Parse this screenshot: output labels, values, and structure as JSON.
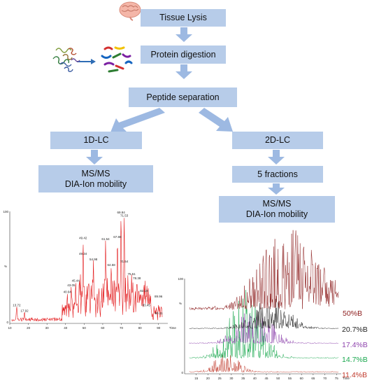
{
  "steps": {
    "tissue_lysis": "Tissue Lysis",
    "protein_digestion": "Protein digestion",
    "peptide_separation": "Peptide separation",
    "lc1d": "1D-LC",
    "lc2d": "2D-LC",
    "msms_left_line1": "MS/MS",
    "msms_left_line2": "DIA-Ion mobility",
    "fractions": "5 fractions",
    "msms_right_line1": "MS/MS",
    "msms_right_line2": "DIA-Ion mobility"
  },
  "colors": {
    "box": "#b7cce9",
    "arrow": "#9db9e2",
    "left_chromatogram": "#e31a1c",
    "trace_50": "#8b1a1a",
    "trace_20_7": "#222222",
    "trace_17_4": "#8e44ad",
    "trace_14_7": "#1aa84f",
    "trace_11_4": "#c0392b"
  },
  "chart_data": [
    {
      "type": "line",
      "title": "",
      "xlabel": "Time",
      "ylabel": "%",
      "xlim": [
        10,
        95
      ],
      "ylim": [
        0,
        100
      ],
      "x_ticks": [
        "10",
        "20",
        "30",
        "40",
        "50",
        "60",
        "70",
        "80",
        "90"
      ],
      "y_ticks": [
        "0",
        "100"
      ],
      "peaks": [
        {
          "x": 13.72,
          "y": 14,
          "label": "13.72"
        },
        {
          "x": 17.92,
          "y": 9,
          "label": "17.92"
        },
        {
          "x": 40.94,
          "y": 26,
          "label": "40.94"
        },
        {
          "x": 43.05,
          "y": 32,
          "label": "43.05"
        },
        {
          "x": 45.44,
          "y": 36,
          "label": "45.44"
        },
        {
          "x": 49.34,
          "y": 60,
          "label": "49.34"
        },
        {
          "x": 49.42,
          "y": 74,
          "label": "49.42"
        },
        {
          "x": 54.98,
          "y": 55,
          "label": "54.98"
        },
        {
          "x": 61.54,
          "y": 73,
          "label": "61.54"
        },
        {
          "x": 64.58,
          "y": 50,
          "label": "64.58"
        },
        {
          "x": 67.88,
          "y": 75,
          "label": "67.88"
        },
        {
          "x": 69.84,
          "y": 97,
          "label": "69.84"
        },
        {
          "x": 71.53,
          "y": 94,
          "label": "71.53"
        },
        {
          "x": 71.54,
          "y": 53,
          "label": "71.54"
        },
        {
          "x": 75.51,
          "y": 42,
          "label": "75.51"
        },
        {
          "x": 78.38,
          "y": 38,
          "label": "78.38"
        },
        {
          "x": 82.19,
          "y": 27,
          "label": "82.19"
        },
        {
          "x": 83.45,
          "y": 14,
          "label": "83.45"
        },
        {
          "x": 89.96,
          "y": 22,
          "label": "89.96"
        },
        {
          "x": 90.11,
          "y": 7,
          "label": "90.11"
        }
      ]
    },
    {
      "type": "line",
      "title": "",
      "xlabel": "Time",
      "ylabel": "%",
      "xlim": [
        10,
        77
      ],
      "x_ticks": [
        "15",
        "20",
        "25",
        "30",
        "35",
        "40",
        "45",
        "50",
        "55",
        "60",
        "65",
        "70",
        "75"
      ],
      "y_ticks": [
        "0",
        "100"
      ],
      "series": [
        {
          "name": "50%B",
          "offset": 4,
          "center": 54,
          "spread": 16,
          "peak": 1.0
        },
        {
          "name": "20.7%B",
          "offset": 3,
          "center": 47,
          "spread": 11,
          "peak": 0.55
        },
        {
          "name": "17.4%B",
          "offset": 2,
          "center": 40,
          "spread": 10,
          "peak": 0.6
        },
        {
          "name": "14.7%B",
          "offset": 1,
          "center": 36,
          "spread": 10,
          "peak": 0.9
        },
        {
          "name": "11.4%B",
          "offset": 0,
          "center": 28,
          "spread": 7,
          "peak": 0.7
        }
      ]
    }
  ]
}
